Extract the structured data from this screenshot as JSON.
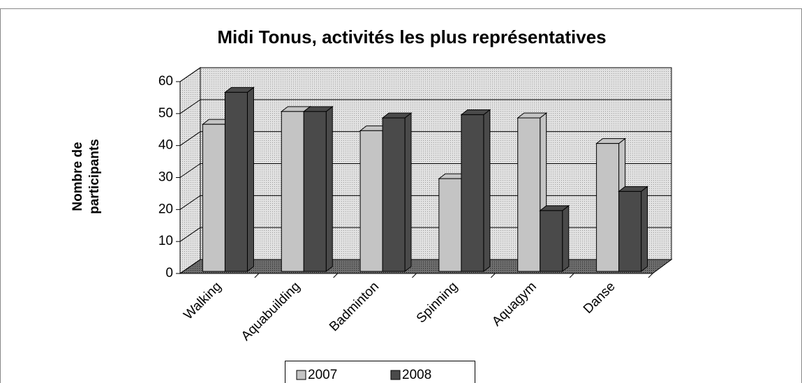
{
  "chart_data": {
    "type": "bar3d",
    "title": "Midi Tonus, activités les plus représentatives",
    "y_label": [
      "Nombre de",
      "participants"
    ],
    "categories": [
      "Walking",
      "Aquabuilding",
      "Badminton",
      "Spinning",
      "Aquagym",
      "Danse"
    ],
    "series": [
      {
        "name": "2007",
        "color": "#c4c4c4",
        "values": [
          46,
          50,
          44,
          29,
          48,
          40
        ]
      },
      {
        "name": "2008",
        "color": "#4a4a4a",
        "values": [
          56,
          50,
          48,
          49,
          19,
          25
        ]
      }
    ],
    "ylim": [
      0,
      60
    ],
    "yticks": [
      0,
      10,
      20,
      30,
      40,
      50,
      60
    ],
    "grid": true,
    "legend": "bottom"
  }
}
